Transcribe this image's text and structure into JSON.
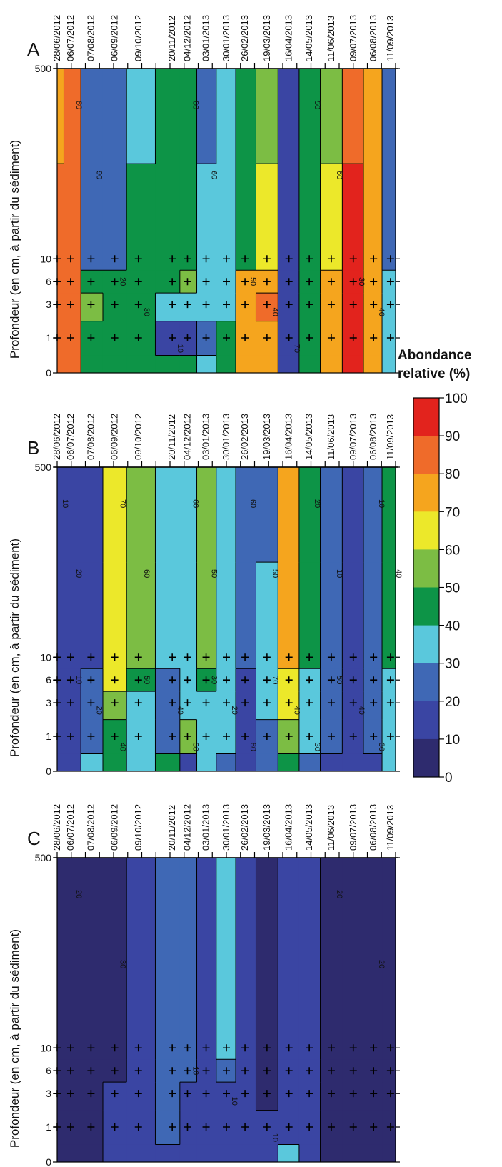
{
  "dates": [
    "28/06/2012",
    "06/07/2012",
    "07/08/2012",
    "06/09/2012",
    "09/10/2012",
    "20/11/2012",
    "04/12/2012",
    "03/01/2013",
    "30/01/2013",
    "26/02/2013",
    "19/03/2013",
    "16/04/2013",
    "14/05/2013",
    "11/06/2013",
    "09/07/2013",
    "06/08/2013",
    "11/09/2013"
  ],
  "depth_ticks": [
    "500",
    "10",
    "6",
    "3",
    "1",
    "0"
  ],
  "ylabel": "Profondeur (en cm, à partir du sédiment)",
  "colorbar": {
    "title_line1": "Abondance",
    "title_line2": "relative (%)",
    "levels": [
      "100",
      "90",
      "80",
      "70",
      "60",
      "50",
      "40",
      "30",
      "20",
      "10",
      "0"
    ],
    "colors": [
      "#2e2b6e",
      "#3a45a3",
      "#3f68b5",
      "#5ac8dc",
      "#0d9447",
      "#7cbd44",
      "#ece82a",
      "#f5a51e",
      "#ef6b2a",
      "#e2231d",
      "#8b1616"
    ]
  },
  "chart_data": [
    {
      "type": "heatmap",
      "panel": "A",
      "xlabel": "",
      "ylabel": "Profondeur (en cm, à partir du sédiment)",
      "x": [
        "28/06/2012",
        "06/07/2012",
        "07/08/2012",
        "06/09/2012",
        "09/10/2012",
        "20/11/2012",
        "04/12/2012",
        "03/01/2013",
        "30/01/2013",
        "26/02/2013",
        "19/03/2013",
        "16/04/2013",
        "14/05/2013",
        "11/06/2013",
        "09/07/2013",
        "06/08/2013",
        "11/09/2013"
      ],
      "y_depth_cm": [
        500,
        10,
        6,
        3,
        1,
        0
      ],
      "values": [
        [
          75,
          85,
          20,
          20,
          35,
          45,
          45,
          20,
          30,
          45,
          55,
          15,
          45,
          55,
          85,
          70,
          25
        ],
        [
          85,
          85,
          20,
          20,
          40,
          45,
          45,
          30,
          35,
          45,
          65,
          15,
          45,
          60,
          90,
          70,
          25
        ],
        [
          85,
          85,
          45,
          45,
          40,
          45,
          55,
          35,
          35,
          75,
          75,
          15,
          45,
          75,
          92,
          70,
          35
        ],
        [
          85,
          85,
          50,
          45,
          45,
          35,
          35,
          30,
          35,
          75,
          80,
          15,
          45,
          75,
          92,
          70,
          35
        ],
        [
          85,
          85,
          45,
          45,
          45,
          15,
          10,
          20,
          45,
          75,
          75,
          15,
          45,
          75,
          92,
          70,
          35
        ],
        [
          85,
          85,
          45,
          45,
          45,
          40,
          45,
          35,
          45,
          75,
          75,
          15,
          45,
          75,
          92,
          70,
          35
        ]
      ],
      "contour_labels": [
        "80",
        "90",
        "20",
        "30",
        "10",
        "80",
        "60",
        "50",
        "40",
        "70",
        "50",
        "60",
        "30",
        "40"
      ],
      "zlim": [
        0,
        100
      ]
    },
    {
      "type": "heatmap",
      "panel": "B",
      "xlabel": "",
      "ylabel": "Profondeur (en cm, à partir du sédiment)",
      "x": [
        "28/06/2012",
        "06/07/2012",
        "07/08/2012",
        "06/09/2012",
        "09/10/2012",
        "20/11/2012",
        "04/12/2012",
        "03/01/2013",
        "30/01/2013",
        "26/02/2013",
        "19/03/2013",
        "16/04/2013",
        "14/05/2013",
        "11/06/2013",
        "09/07/2013",
        "06/08/2013",
        "11/09/2013"
      ],
      "y_depth_cm": [
        500,
        10,
        6,
        3,
        1,
        0
      ],
      "values": [
        [
          15,
          15,
          15,
          65,
          50,
          35,
          35,
          55,
          35,
          25,
          25,
          75,
          45,
          25,
          15,
          25,
          45
        ],
        [
          15,
          15,
          15,
          65,
          50,
          35,
          35,
          55,
          35,
          25,
          35,
          75,
          45,
          25,
          15,
          25,
          45
        ],
        [
          15,
          15,
          25,
          65,
          45,
          25,
          30,
          45,
          35,
          15,
          35,
          65,
          35,
          25,
          15,
          25,
          35
        ],
        [
          15,
          15,
          25,
          55,
          35,
          25,
          30,
          35,
          35,
          15,
          35,
          65,
          35,
          25,
          15,
          25,
          35
        ],
        [
          15,
          15,
          25,
          45,
          35,
          25,
          55,
          35,
          35,
          15,
          25,
          55,
          35,
          25,
          15,
          25,
          35
        ],
        [
          15,
          15,
          35,
          45,
          35,
          45,
          15,
          35,
          25,
          15,
          25,
          45,
          25,
          15,
          15,
          15,
          35
        ]
      ],
      "contour_labels": [
        "10",
        "20",
        "10",
        "20",
        "40",
        "70",
        "60",
        "50",
        "40",
        "30",
        "60",
        "50",
        "30",
        "20",
        "80",
        "60",
        "50",
        "70",
        "40",
        "30",
        "20",
        "10",
        "50",
        "40",
        "30",
        "10",
        "40"
      ],
      "zlim": [
        0,
        100
      ]
    },
    {
      "type": "heatmap",
      "panel": "C",
      "xlabel": "",
      "ylabel": "Profondeur (en cm, à partir du sédiment)",
      "x": [
        "28/06/2012",
        "06/07/2012",
        "07/08/2012",
        "06/09/2012",
        "09/10/2012",
        "20/11/2012",
        "04/12/2012",
        "03/01/2013",
        "30/01/2013",
        "26/02/2013",
        "19/03/2013",
        "16/04/2013",
        "14/05/2013",
        "11/06/2013",
        "09/07/2013",
        "06/08/2013",
        "11/09/2013"
      ],
      "y_depth_cm": [
        500,
        10,
        6,
        3,
        1,
        0
      ],
      "values": [
        [
          5,
          5,
          5,
          5,
          15,
          25,
          25,
          15,
          35,
          15,
          5,
          15,
          15,
          5,
          5,
          5,
          5
        ],
        [
          5,
          5,
          5,
          5,
          15,
          25,
          25,
          15,
          35,
          15,
          5,
          15,
          15,
          5,
          5,
          5,
          5
        ],
        [
          5,
          5,
          5,
          5,
          15,
          25,
          25,
          15,
          25,
          15,
          5,
          15,
          15,
          5,
          5,
          5,
          5
        ],
        [
          5,
          5,
          5,
          15,
          15,
          25,
          15,
          15,
          15,
          15,
          5,
          15,
          15,
          5,
          5,
          5,
          5
        ],
        [
          5,
          5,
          5,
          15,
          15,
          25,
          15,
          15,
          15,
          15,
          15,
          15,
          15,
          5,
          5,
          5,
          5
        ],
        [
          5,
          5,
          5,
          15,
          15,
          15,
          15,
          15,
          15,
          15,
          15,
          35,
          15,
          5,
          5,
          5,
          5
        ]
      ],
      "contour_labels": [
        "20",
        "30",
        "10",
        "10",
        "10",
        "20",
        "20"
      ],
      "zlim": [
        0,
        100
      ]
    }
  ],
  "panels": [
    {
      "letter": "A"
    },
    {
      "letter": "B"
    },
    {
      "letter": "C"
    }
  ]
}
